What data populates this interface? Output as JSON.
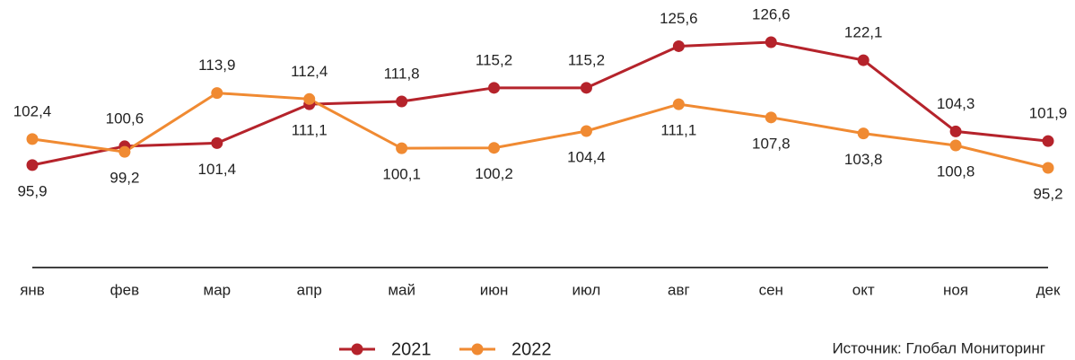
{
  "chart_data": {
    "type": "line",
    "categories": [
      "янв",
      "фев",
      "мар",
      "апр",
      "май",
      "июн",
      "июл",
      "авг",
      "сен",
      "окт",
      "ноя",
      "дек"
    ],
    "series": [
      {
        "name": "2021",
        "color": "#b5232b",
        "values": [
          95.9,
          100.6,
          101.4,
          111.1,
          111.8,
          115.2,
          115.2,
          125.6,
          126.6,
          122.1,
          104.3,
          101.9
        ],
        "value_labels": [
          "95,9",
          "100,6",
          "101,4",
          "111,1",
          "111,8",
          "115,2",
          "115,2",
          "125,6",
          "126,6",
          "122,1",
          "104,3",
          "101,9"
        ]
      },
      {
        "name": "2022",
        "color": "#f08a32",
        "values": [
          102.4,
          99.2,
          113.9,
          112.4,
          100.1,
          100.2,
          104.4,
          111.1,
          107.8,
          103.8,
          100.8,
          95.2
        ],
        "value_labels": [
          "102,4",
          "99,2",
          "113,9",
          "112,4",
          "100,1",
          "100,2",
          "104,4",
          "111,1",
          "107,8",
          "103,8",
          "100,8",
          "95,2"
        ]
      }
    ],
    "legend": "bottom",
    "source": "Источник: Глобал Мониторинг"
  }
}
